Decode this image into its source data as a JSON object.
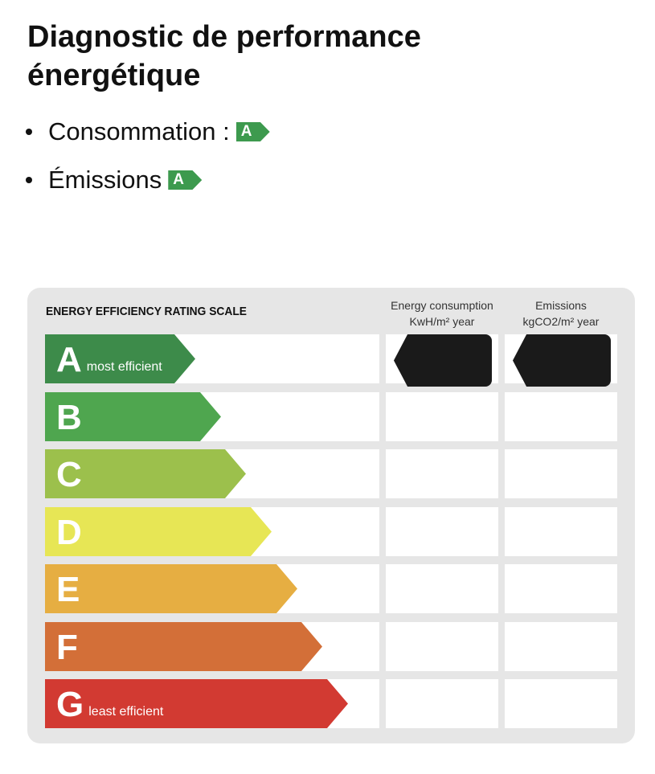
{
  "title": "Diagnostic de performance énergétique",
  "bullets": [
    {
      "label": "Consommation :",
      "rating": "A"
    },
    {
      "label": "Émissions",
      "rating": "A"
    }
  ],
  "scale": {
    "title": "ENERGY EFFICIENCY RATING SCALE",
    "col_energy": [
      "Energy consumption",
      "KwH/m² year"
    ],
    "col_emissions": [
      "Emissions",
      "kgCO2/m² year"
    ],
    "rows": [
      {
        "letter": "A",
        "sub": "most efficient",
        "color": "#3d8b4a"
      },
      {
        "letter": "B",
        "sub": "",
        "color": "#4fa64f"
      },
      {
        "letter": "C",
        "sub": "",
        "color": "#9cc04c"
      },
      {
        "letter": "D",
        "sub": "",
        "color": "#e7e655"
      },
      {
        "letter": "E",
        "sub": "",
        "color": "#e6ae42"
      },
      {
        "letter": "F",
        "sub": "",
        "color": "#d36f38"
      },
      {
        "letter": "G",
        "sub": "least efficient",
        "color": "#d23a32"
      }
    ],
    "energy_rating": "A",
    "emissions_rating": "A"
  }
}
